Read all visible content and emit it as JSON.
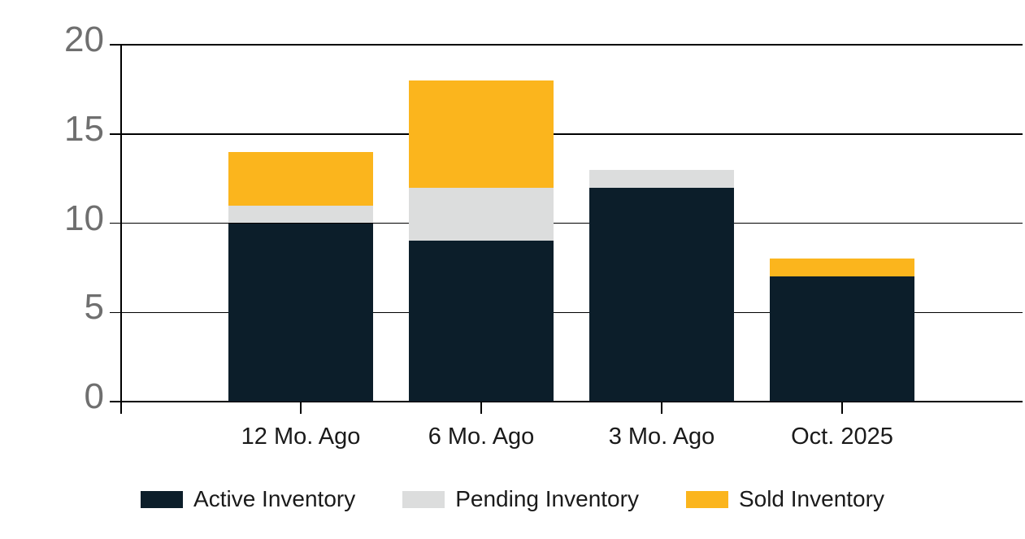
{
  "chart_data": {
    "type": "bar",
    "stacked": true,
    "title": "",
    "xlabel": "",
    "ylabel": "",
    "categories": [
      "12 Mo. Ago",
      "6 Mo. Ago",
      "3 Mo. Ago",
      "Oct. 2025"
    ],
    "series": [
      {
        "name": "Active Inventory",
        "color": "#0C1E2A",
        "values": [
          10,
          9,
          12,
          7
        ]
      },
      {
        "name": "Pending Inventory",
        "color": "#DCDDDD",
        "values": [
          1,
          3,
          1,
          0
        ]
      },
      {
        "name": "Sold Inventory",
        "color": "#FBB51D",
        "values": [
          3,
          6,
          0,
          1
        ]
      }
    ],
    "stack_totals": [
      14,
      18,
      13,
      8
    ],
    "ylim": [
      0,
      20
    ],
    "yticks": [
      0,
      5,
      10,
      15,
      20
    ],
    "grid": true,
    "legend_position": "bottom"
  },
  "colors": {
    "active_inventory": "#0C1E2A",
    "pending_inventory": "#DCDDDD",
    "sold_inventory": "#FBB51D",
    "axis_tick_text": "#6F6F6F",
    "category_text": "#1A1A1A",
    "gridline": "#000000",
    "background": "#FFFFFF"
  }
}
